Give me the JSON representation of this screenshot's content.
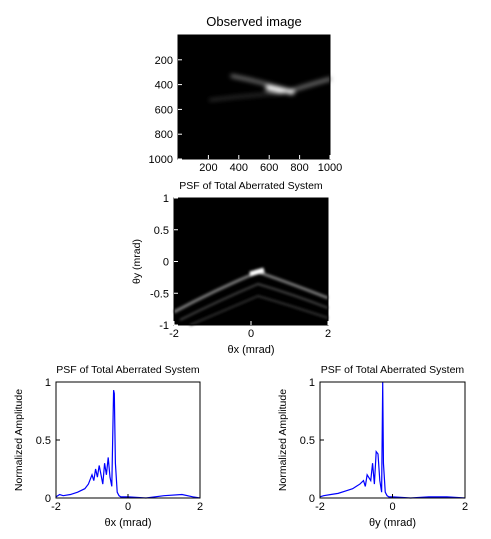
{
  "chart_data": [
    {
      "type": "image",
      "title": "Observed image",
      "xlim": [
        0,
        1000
      ],
      "xticks": [
        200,
        400,
        600,
        800,
        1000
      ],
      "ylim": [
        0,
        1000
      ],
      "yticks": [
        200,
        400,
        600,
        800,
        1000
      ],
      "yreverse": true
    },
    {
      "type": "image",
      "title": "PSF of Total Aberrated System",
      "xlabel": "θx (mrad)",
      "ylabel": "θy (mrad)",
      "xlim": [
        -2,
        2
      ],
      "xticks": [
        -2,
        0,
        2
      ],
      "ylim": [
        -1,
        1
      ],
      "yticks": [
        -1,
        -0.5,
        0,
        0.5,
        1
      ]
    },
    {
      "type": "line",
      "title": "PSF of Total Aberrated System",
      "xlabel": "θx (mrad)",
      "ylabel": "Normalized Amplitude",
      "xlim": [
        -2,
        2
      ],
      "xticks": [
        -2,
        0,
        2
      ],
      "ylim": [
        0,
        1
      ],
      "yticks": [
        0,
        0.5,
        1
      ],
      "x": [
        -2,
        -1.9,
        -1.8,
        -1.6,
        -1.4,
        -1.2,
        -1.1,
        -1.0,
        -0.95,
        -0.9,
        -0.85,
        -0.8,
        -0.75,
        -0.7,
        -0.65,
        -0.6,
        -0.55,
        -0.5,
        -0.45,
        -0.4,
        -0.38,
        -0.35,
        -0.3,
        -0.25,
        -0.2,
        0,
        0.5,
        1.0,
        1.5,
        1.8,
        2
      ],
      "series": [
        {
          "color": "#0000ff",
          "values": [
            0.01,
            0.03,
            0.02,
            0.03,
            0.05,
            0.08,
            0.12,
            0.2,
            0.15,
            0.25,
            0.18,
            0.28,
            0.2,
            0.12,
            0.3,
            0.2,
            0.35,
            0.18,
            0.1,
            0.93,
            0.9,
            0.3,
            0.05,
            0.02,
            0.01,
            0.01,
            0,
            0.02,
            0.03,
            0.01,
            0
          ]
        }
      ]
    },
    {
      "type": "line",
      "title": "PSF of Total Aberrated System",
      "xlabel": "θy (mrad)",
      "ylabel": "Normalized Amplitude",
      "xlim": [
        -2,
        2
      ],
      "xticks": [
        -2,
        0,
        2
      ],
      "ylim": [
        0,
        1
      ],
      "yticks": [
        0,
        0.5,
        1
      ],
      "x": [
        -2,
        -1.9,
        -1.7,
        -1.5,
        -1.3,
        -1.1,
        -1.0,
        -0.9,
        -0.8,
        -0.75,
        -0.7,
        -0.6,
        -0.55,
        -0.5,
        -0.45,
        -0.4,
        -0.35,
        -0.3,
        -0.27,
        -0.25,
        -0.2,
        -0.15,
        -0.1,
        0,
        0.5,
        1.0,
        1.5,
        2
      ],
      "series": [
        {
          "color": "#0000ff",
          "values": [
            0.01,
            0.02,
            0.03,
            0.04,
            0.06,
            0.08,
            0.1,
            0.12,
            0.15,
            0.1,
            0.2,
            0.15,
            0.3,
            0.12,
            0.4,
            0.38,
            0.15,
            0.05,
            1,
            0.3,
            0.05,
            0.02,
            0.01,
            0.01,
            0,
            0.01,
            0.01,
            0
          ]
        }
      ]
    }
  ]
}
